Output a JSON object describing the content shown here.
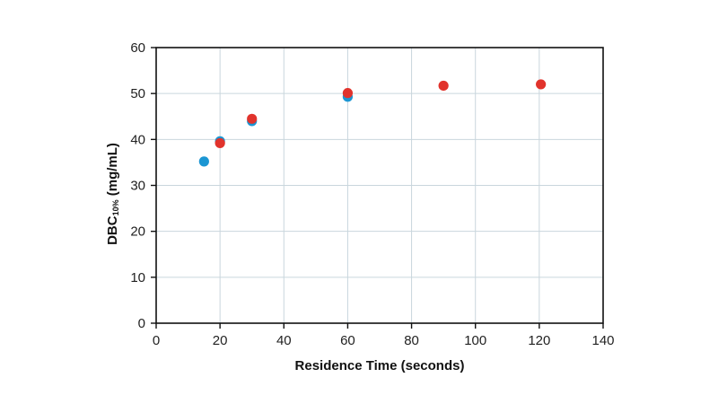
{
  "chart_data": {
    "type": "scatter",
    "title": "",
    "xlabel": "Residence Time (seconds)",
    "ylabel": {
      "main": "DBC",
      "subscript": "10%",
      "unit": " (mg/mL)"
    },
    "xlim": [
      0,
      140
    ],
    "ylim": [
      0,
      60
    ],
    "xticks": [
      "0",
      "20",
      "40",
      "60",
      "80",
      "100",
      "120",
      "140"
    ],
    "yticks": [
      "0",
      "10",
      "20",
      "30",
      "40",
      "50",
      "60"
    ],
    "xtick_values": [
      0,
      20,
      40,
      60,
      80,
      100,
      120,
      140
    ],
    "ytick_values": [
      0,
      10,
      20,
      30,
      40,
      50,
      60
    ],
    "grid": true,
    "legend": "none",
    "series": [
      {
        "color": "#1b96d3",
        "points": [
          {
            "x": 15,
            "y": 35.2
          },
          {
            "x": 20,
            "y": 39.6
          },
          {
            "x": 30,
            "y": 44.0
          },
          {
            "x": 60,
            "y": 49.3
          }
        ]
      },
      {
        "color": "#e1332c",
        "points": [
          {
            "x": 20,
            "y": 39.2
          },
          {
            "x": 30,
            "y": 44.5
          },
          {
            "x": 60,
            "y": 50.1
          },
          {
            "x": 90,
            "y": 51.7
          },
          {
            "x": 120.5,
            "y": 52.0
          }
        ]
      }
    ],
    "grid_color": "#c9d6dd",
    "axis_color": "#111111"
  }
}
